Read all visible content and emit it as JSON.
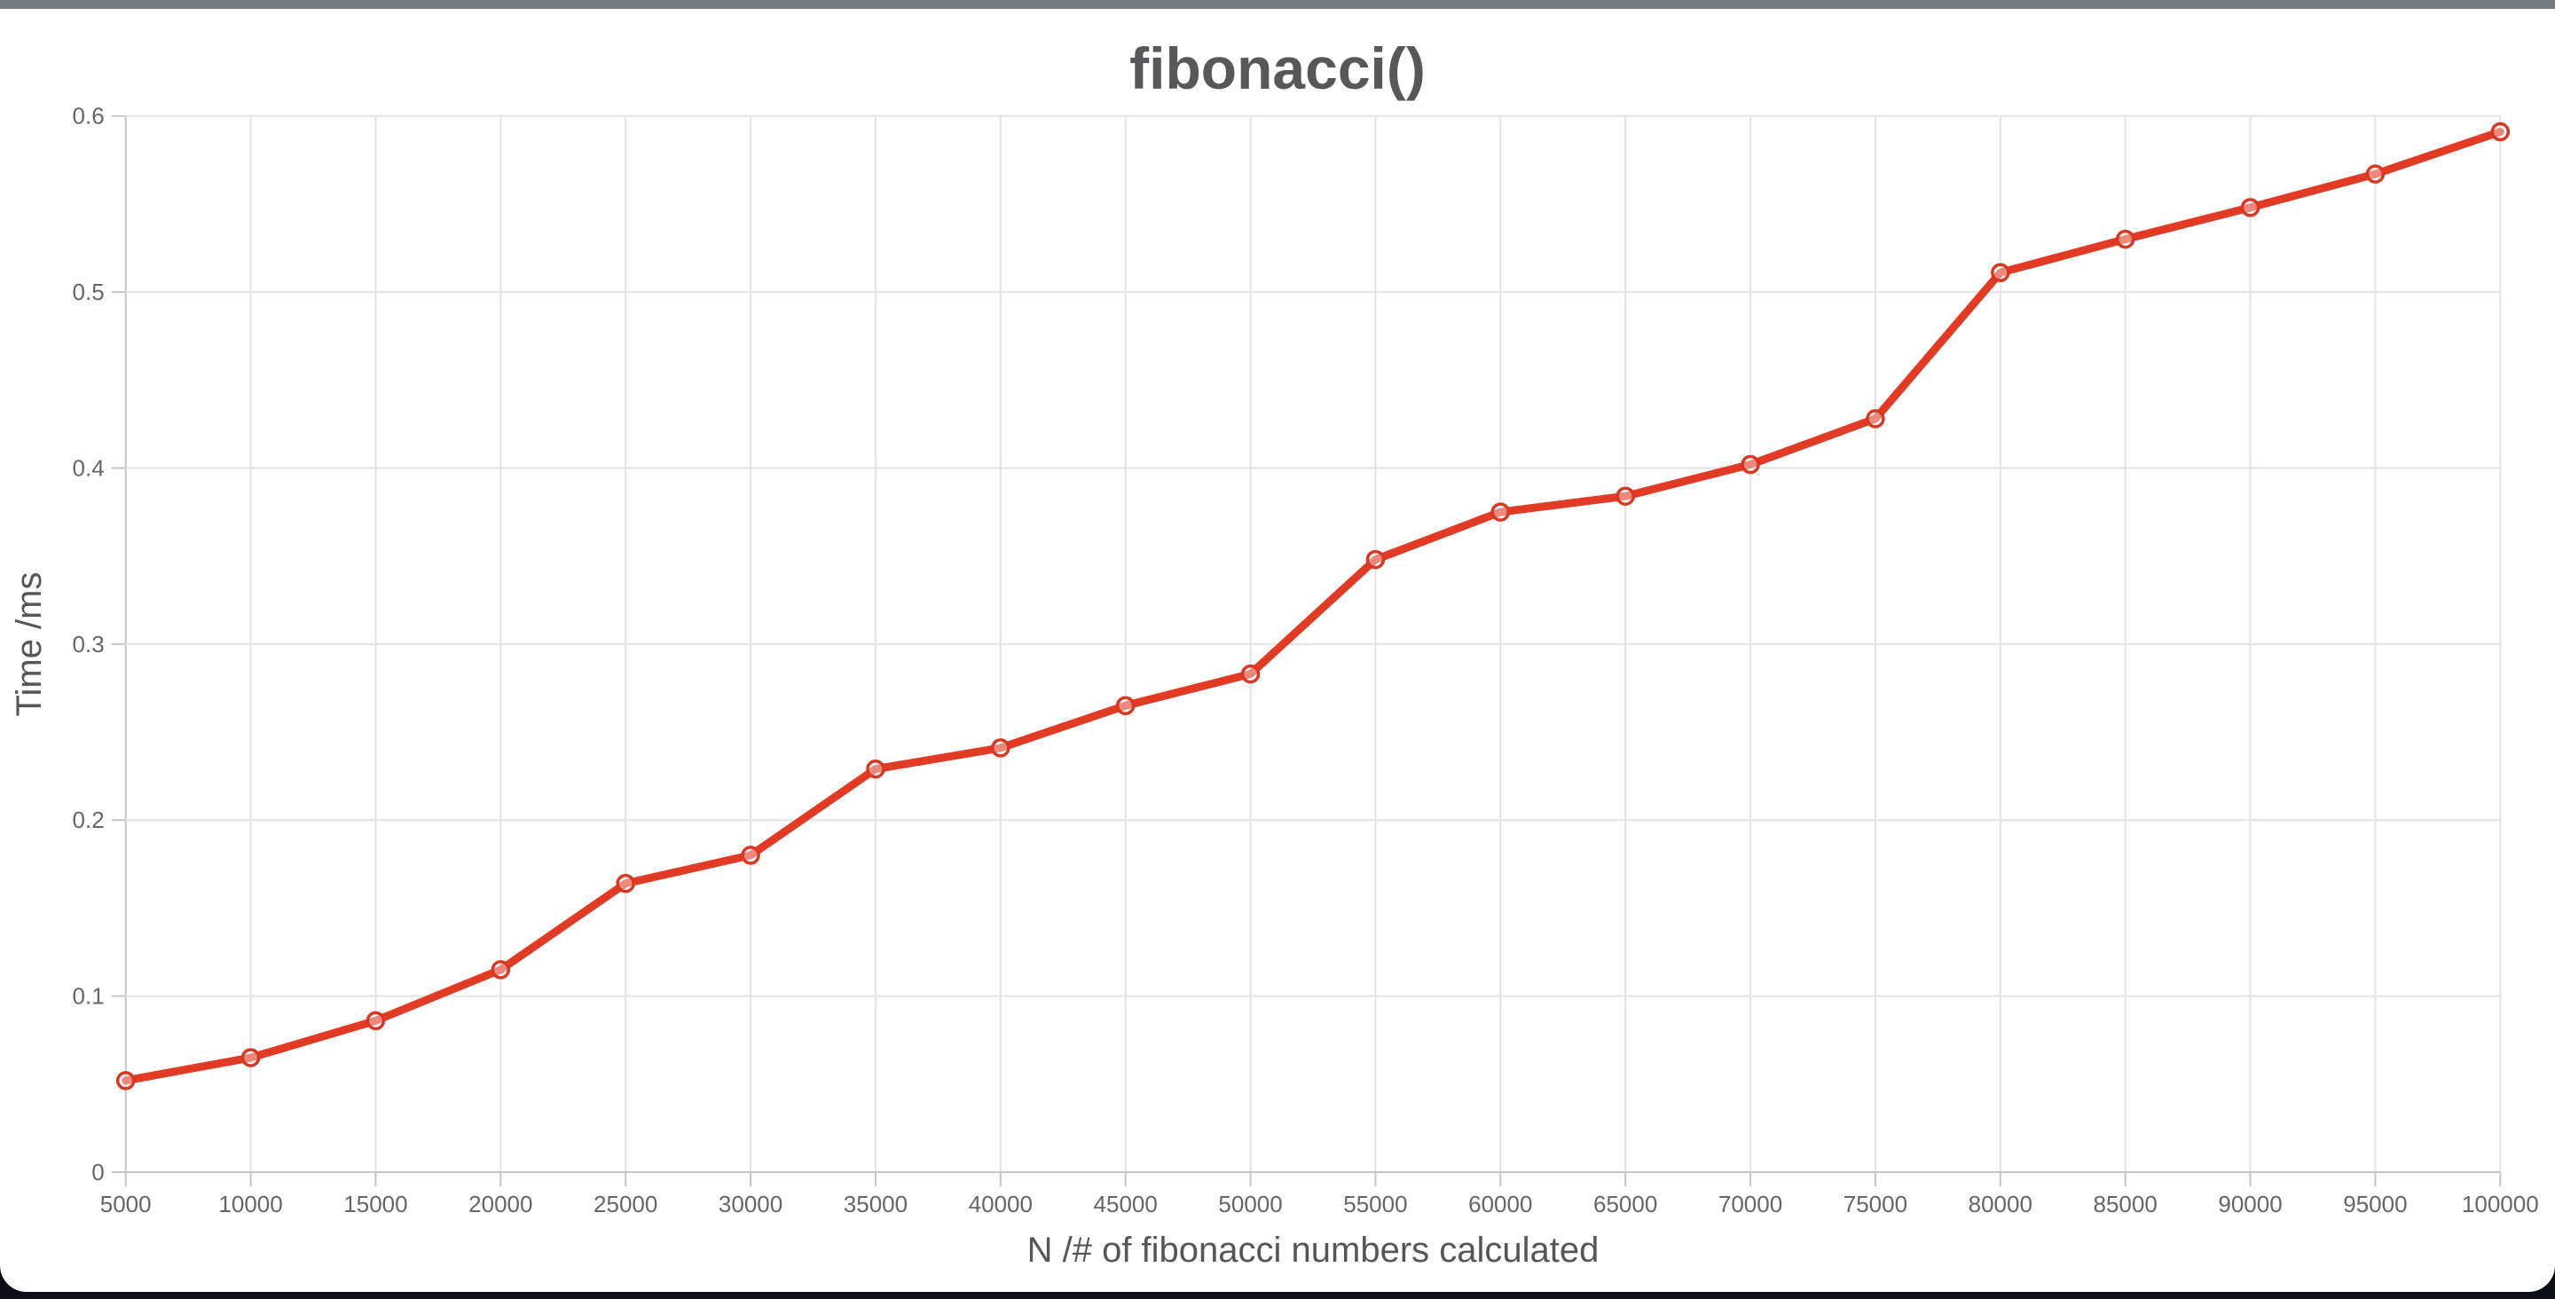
{
  "page": {
    "background": "#0b0b15",
    "top_edge_color": "#747a7f",
    "window_background": "#ffffff"
  },
  "chart_data": {
    "type": "line",
    "title": "fibonacci()",
    "xlabel": "N /# of fibonacci numbers calculated",
    "ylabel": "Time /ms",
    "x": [
      5000,
      10000,
      15000,
      20000,
      25000,
      30000,
      35000,
      40000,
      45000,
      50000,
      55000,
      60000,
      65000,
      70000,
      75000,
      80000,
      85000,
      90000,
      95000,
      100000
    ],
    "x_tick_labels": [
      "5000",
      "10000",
      "15000",
      "20000",
      "25000",
      "30000",
      "35000",
      "40000",
      "45000",
      "50000",
      "55000",
      "60000",
      "65000",
      "70000",
      "75000",
      "80000",
      "85000",
      "90000",
      "95000",
      "100000"
    ],
    "series": [
      {
        "name": "fibonacci()",
        "values": [
          0.052,
          0.065,
          0.086,
          0.115,
          0.164,
          0.18,
          0.229,
          0.241,
          0.265,
          0.283,
          0.348,
          0.375,
          0.384,
          0.402,
          0.428,
          0.511,
          0.53,
          0.548,
          0.567,
          0.591
        ]
      }
    ],
    "xlim": [
      5000,
      100000
    ],
    "ylim": [
      0,
      0.6
    ],
    "y_ticks": [
      0,
      0.1,
      0.2,
      0.3,
      0.4,
      0.5,
      0.6
    ],
    "y_tick_labels": [
      "0",
      "0.1",
      "0.2",
      "0.3",
      "0.4",
      "0.5",
      "0.6"
    ],
    "grid": true,
    "legend_position": "none",
    "marker": "open-circle",
    "colors": {
      "line": "#e23b25",
      "marker_stroke": "#d63822",
      "title": "#58585b",
      "axis_title": "#565656",
      "tick_label": "#666666",
      "gridline": "#e3e3e3",
      "axis_line": "#c6c6c6"
    }
  }
}
